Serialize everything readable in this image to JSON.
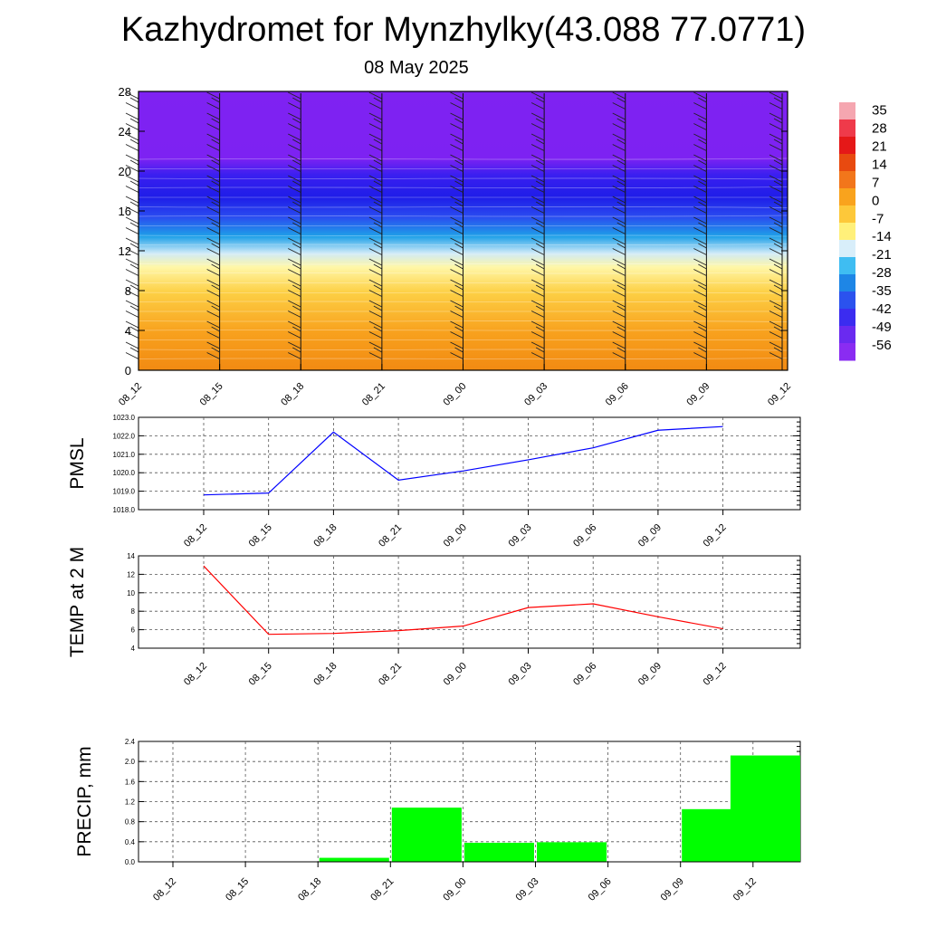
{
  "header": {
    "title": "Kazhydromet for Mynzhylky(43.088 77.0771)",
    "date": "08 May 2025"
  },
  "colors": {
    "pmsl_line": "#0000ff",
    "temp_line": "#ff0000",
    "precip_bar": "#00ff00",
    "grid": "#555555"
  },
  "chart_data": [
    {
      "type": "heatmap",
      "name": "vertical-section",
      "x_ticks": [
        "08_12",
        "08_15",
        "08_18",
        "08_21",
        "09_00",
        "09_03",
        "09_06",
        "09_09",
        "09_12"
      ],
      "y_ticks": [
        "0",
        "4",
        "8",
        "12",
        "16",
        "20",
        "24",
        "28"
      ],
      "ylim": [
        0,
        28
      ],
      "colorbar_labels": [
        "35",
        "28",
        "21",
        "14",
        "7",
        "0",
        "-7",
        "-14",
        "-21",
        "-28",
        "-35",
        "-42",
        "-49",
        "-56"
      ],
      "colorbar_range": [
        -62,
        38
      ],
      "wind_barbs": true
    },
    {
      "type": "line",
      "name": "pmsl",
      "ylabel": "PMSL",
      "categories": [
        "08_12",
        "08_15",
        "08_18",
        "08_21",
        "09_00",
        "09_03",
        "09_06",
        "09_09",
        "09_12"
      ],
      "values": [
        1018.8,
        1018.9,
        1022.2,
        1019.6,
        1020.1,
        1020.7,
        1021.35,
        1022.3,
        1022.5
      ],
      "ylim": [
        1018.0,
        1023.0
      ],
      "y_ticks": [
        "1018.0",
        "1019.0",
        "1020.0",
        "1021.0",
        "1022.0",
        "1023.0"
      ],
      "grid": true
    },
    {
      "type": "line",
      "name": "temp",
      "ylabel": "TEMP at 2 M",
      "categories": [
        "08_12",
        "08_15",
        "08_18",
        "08_21",
        "09_00",
        "09_03",
        "09_06",
        "09_09",
        "09_12"
      ],
      "values": [
        12.9,
        5.5,
        5.6,
        5.9,
        6.4,
        8.4,
        8.8,
        7.4,
        6.1
      ],
      "ylim": [
        4,
        14
      ],
      "y_ticks": [
        "4",
        "6",
        "8",
        "10",
        "12",
        "14"
      ],
      "grid": true
    },
    {
      "type": "bar",
      "name": "precip",
      "ylabel": "PRECIP, mm",
      "categories": [
        "08_12",
        "08_15",
        "08_18",
        "08_21",
        "09_00",
        "09_03",
        "09_06",
        "09_09",
        "09_12"
      ],
      "values": [
        0,
        0,
        0.08,
        1.08,
        0.38,
        0.39,
        0,
        1.05,
        2.12
      ],
      "ylim": [
        0,
        2.4
      ],
      "y_ticks": [
        "0.0",
        "0.4",
        "0.8",
        "1.2",
        "1.6",
        "2.0",
        "2.4"
      ],
      "grid": true
    }
  ]
}
